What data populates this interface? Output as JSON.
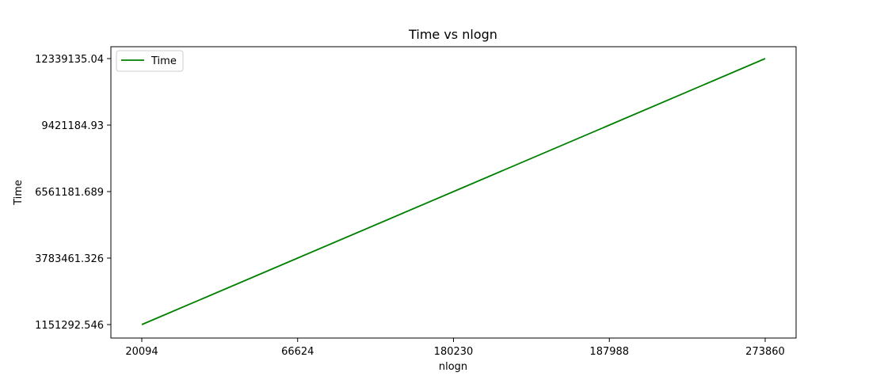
{
  "chart_data": {
    "type": "line",
    "title": "Time vs nlogn",
    "xlabel": "nlogn",
    "ylabel": "Time",
    "categories": [
      "20094",
      "66624",
      "180230",
      "187988",
      "273860"
    ],
    "y_ticks": [
      "1151292.546",
      "3783461.326",
      "6561181.689",
      "9421184.93",
      "12339135.04"
    ],
    "series": [
      {
        "name": "Time",
        "color": "#008000",
        "values": [
          1151292.546,
          3783461.326,
          6561181.689,
          9421184.93,
          12339135.04
        ]
      }
    ],
    "x_scale": "categorical",
    "y_scale": "categorical",
    "grid": false,
    "legend": "top-left"
  }
}
